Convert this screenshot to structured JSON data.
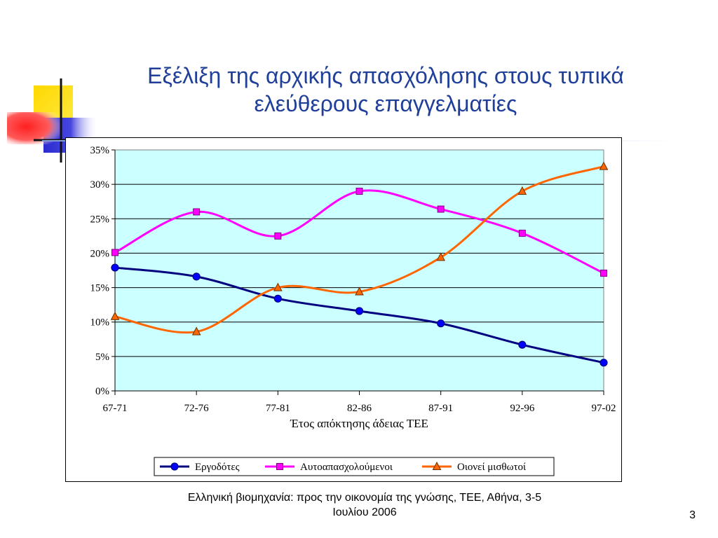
{
  "slide": {
    "title_line1": "Εξέλιξη της αρχικής απασχόλησης στους τυπικά",
    "title_line2": "ελεύθερους επαγγελματίες",
    "footer_line1": "Ελληνική βιομηχανία: προς την οικονομία της γνώσης, ΤΕΕ, Αθήνα, 3-5",
    "footer_line2": "Ιουλίου 2006",
    "page_number": "3"
  },
  "chart_data": {
    "type": "line",
    "title": "",
    "xlabel": "Έτος απόκτησης άδειας ΤΕΕ",
    "ylabel": "",
    "categories": [
      "67-71",
      "72-76",
      "77-81",
      "82-86",
      "87-91",
      "92-96",
      "97-02"
    ],
    "y_ticks": [
      "0%",
      "5%",
      "10%",
      "15%",
      "20%",
      "25%",
      "30%",
      "35%"
    ],
    "ylim": [
      0,
      35
    ],
    "grid": true,
    "legend_position": "bottom",
    "plot_background": "#ccffff",
    "series": [
      {
        "name": "Εργοδότες",
        "color": "#000080",
        "marker": "circle",
        "values": [
          17.9,
          16.6,
          13.4,
          11.6,
          9.8,
          6.7,
          4.1
        ]
      },
      {
        "name": "Αυτοαπασχολούμενοι",
        "color": "#ff00ff",
        "marker": "square",
        "values": [
          20.1,
          26.0,
          22.5,
          29.0,
          26.4,
          22.9,
          17.1
        ]
      },
      {
        "name": "Οιονεί μισθωτοί",
        "color": "#ff6600",
        "marker": "triangle",
        "values": [
          10.8,
          8.6,
          15.0,
          14.4,
          19.4,
          29.0,
          32.6
        ]
      }
    ]
  }
}
